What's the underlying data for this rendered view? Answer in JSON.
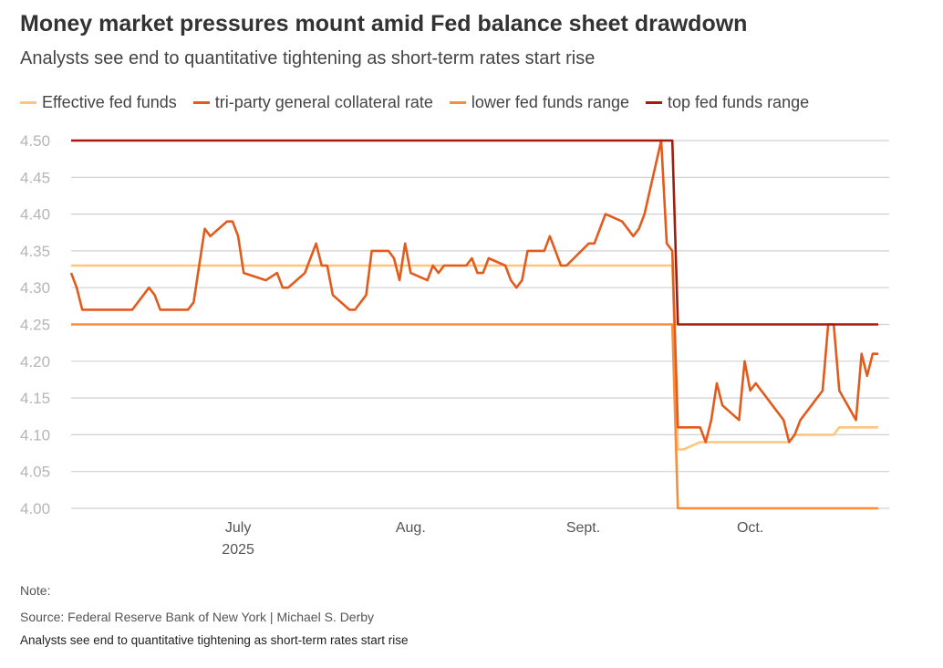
{
  "chart_data": {
    "type": "line",
    "title": "Money market pressures mount amid Fed balance sheet drawdown",
    "subtitle": "Analysts see end to quantitative tightening as short-term rates start rise",
    "xlabel": "",
    "ylabel": "",
    "ylim": [
      4.0,
      4.5
    ],
    "xlim": [
      "2025-06-01",
      "2025-10-24"
    ],
    "yticks": [
      "4.50",
      "4.45",
      "4.40",
      "4.35",
      "4.30",
      "4.25",
      "4.20",
      "4.15",
      "4.10",
      "4.05",
      "4.00"
    ],
    "xticks": [
      {
        "date": "2025-07-01",
        "label": "July",
        "sublabel": "2025"
      },
      {
        "date": "2025-08-01",
        "label": "Aug.",
        "sublabel": ""
      },
      {
        "date": "2025-09-01",
        "label": "Sept.",
        "sublabel": ""
      },
      {
        "date": "2025-10-01",
        "label": "Oct.",
        "sublabel": ""
      }
    ],
    "grid": true,
    "legend_position": "top",
    "series": [
      {
        "name": "Effective fed funds",
        "color": "#fdc57f",
        "points": [
          [
            "2025-06-01",
            4.33
          ],
          [
            "2025-09-17",
            4.33
          ],
          [
            "2025-09-18",
            4.08
          ],
          [
            "2025-09-19",
            4.08
          ],
          [
            "2025-09-22",
            4.09
          ],
          [
            "2025-10-08",
            4.09
          ],
          [
            "2025-10-09",
            4.1
          ],
          [
            "2025-10-16",
            4.1
          ],
          [
            "2025-10-17",
            4.11
          ],
          [
            "2025-10-24",
            4.11
          ]
        ]
      },
      {
        "name": "tri-party general collateral rate",
        "color": "#e35b1c",
        "points": [
          [
            "2025-06-01",
            4.32
          ],
          [
            "2025-06-02",
            4.3
          ],
          [
            "2025-06-03",
            4.27
          ],
          [
            "2025-06-12",
            4.27
          ],
          [
            "2025-06-15",
            4.3
          ],
          [
            "2025-06-16",
            4.29
          ],
          [
            "2025-06-17",
            4.27
          ],
          [
            "2025-06-22",
            4.27
          ],
          [
            "2025-06-23",
            4.28
          ],
          [
            "2025-06-25",
            4.38
          ],
          [
            "2025-06-26",
            4.37
          ],
          [
            "2025-06-29",
            4.39
          ],
          [
            "2025-06-30",
            4.39
          ],
          [
            "2025-07-01",
            4.37
          ],
          [
            "2025-07-02",
            4.32
          ],
          [
            "2025-07-06",
            4.31
          ],
          [
            "2025-07-08",
            4.32
          ],
          [
            "2025-07-09",
            4.3
          ],
          [
            "2025-07-10",
            4.3
          ],
          [
            "2025-07-13",
            4.32
          ],
          [
            "2025-07-15",
            4.36
          ],
          [
            "2025-07-16",
            4.33
          ],
          [
            "2025-07-17",
            4.33
          ],
          [
            "2025-07-18",
            4.29
          ],
          [
            "2025-07-21",
            4.27
          ],
          [
            "2025-07-22",
            4.27
          ],
          [
            "2025-07-24",
            4.29
          ],
          [
            "2025-07-25",
            4.35
          ],
          [
            "2025-07-28",
            4.35
          ],
          [
            "2025-07-29",
            4.34
          ],
          [
            "2025-07-30",
            4.31
          ],
          [
            "2025-07-31",
            4.36
          ],
          [
            "2025-08-01",
            4.32
          ],
          [
            "2025-08-04",
            4.31
          ],
          [
            "2025-08-05",
            4.33
          ],
          [
            "2025-08-06",
            4.32
          ],
          [
            "2025-08-07",
            4.33
          ],
          [
            "2025-08-11",
            4.33
          ],
          [
            "2025-08-12",
            4.34
          ],
          [
            "2025-08-13",
            4.32
          ],
          [
            "2025-08-14",
            4.32
          ],
          [
            "2025-08-15",
            4.34
          ],
          [
            "2025-08-18",
            4.33
          ],
          [
            "2025-08-19",
            4.31
          ],
          [
            "2025-08-20",
            4.3
          ],
          [
            "2025-08-21",
            4.31
          ],
          [
            "2025-08-22",
            4.35
          ],
          [
            "2025-08-25",
            4.35
          ],
          [
            "2025-08-26",
            4.37
          ],
          [
            "2025-08-28",
            4.33
          ],
          [
            "2025-08-29",
            4.33
          ],
          [
            "2025-09-02",
            4.36
          ],
          [
            "2025-09-03",
            4.36
          ],
          [
            "2025-09-05",
            4.4
          ],
          [
            "2025-09-08",
            4.39
          ],
          [
            "2025-09-10",
            4.37
          ],
          [
            "2025-09-11",
            4.38
          ],
          [
            "2025-09-12",
            4.4
          ],
          [
            "2025-09-15",
            4.5
          ],
          [
            "2025-09-16",
            4.36
          ],
          [
            "2025-09-17",
            4.35
          ],
          [
            "2025-09-18",
            4.11
          ],
          [
            "2025-09-22",
            4.11
          ],
          [
            "2025-09-23",
            4.09
          ],
          [
            "2025-09-24",
            4.12
          ],
          [
            "2025-09-25",
            4.17
          ],
          [
            "2025-09-26",
            4.14
          ],
          [
            "2025-09-29",
            4.12
          ],
          [
            "2025-09-30",
            4.2
          ],
          [
            "2025-10-01",
            4.16
          ],
          [
            "2025-10-02",
            4.17
          ],
          [
            "2025-10-07",
            4.12
          ],
          [
            "2025-10-08",
            4.09
          ],
          [
            "2025-10-09",
            4.1
          ],
          [
            "2025-10-10",
            4.12
          ],
          [
            "2025-10-14",
            4.16
          ],
          [
            "2025-10-15",
            4.25
          ],
          [
            "2025-10-16",
            4.25
          ],
          [
            "2025-10-17",
            4.16
          ],
          [
            "2025-10-20",
            4.12
          ],
          [
            "2025-10-21",
            4.21
          ],
          [
            "2025-10-22",
            4.18
          ],
          [
            "2025-10-23",
            4.21
          ],
          [
            "2025-10-24",
            4.21
          ]
        ]
      },
      {
        "name": "lower fed funds range",
        "color": "#fb8c3c",
        "points": [
          [
            "2025-06-01",
            4.25
          ],
          [
            "2025-09-17",
            4.25
          ],
          [
            "2025-09-18",
            4.0
          ],
          [
            "2025-10-24",
            4.0
          ]
        ]
      },
      {
        "name": "top fed funds range",
        "color": "#a51c0e",
        "points": [
          [
            "2025-06-01",
            4.5
          ],
          [
            "2025-09-17",
            4.5
          ],
          [
            "2025-09-18",
            4.25
          ],
          [
            "2025-10-24",
            4.25
          ]
        ]
      }
    ]
  },
  "footer": {
    "note": "Note:",
    "source": "Source: Federal Reserve Bank of New York | Michael S. Derby",
    "caption": "Analysts see end to quantitative tightening as short-term rates start rise"
  }
}
